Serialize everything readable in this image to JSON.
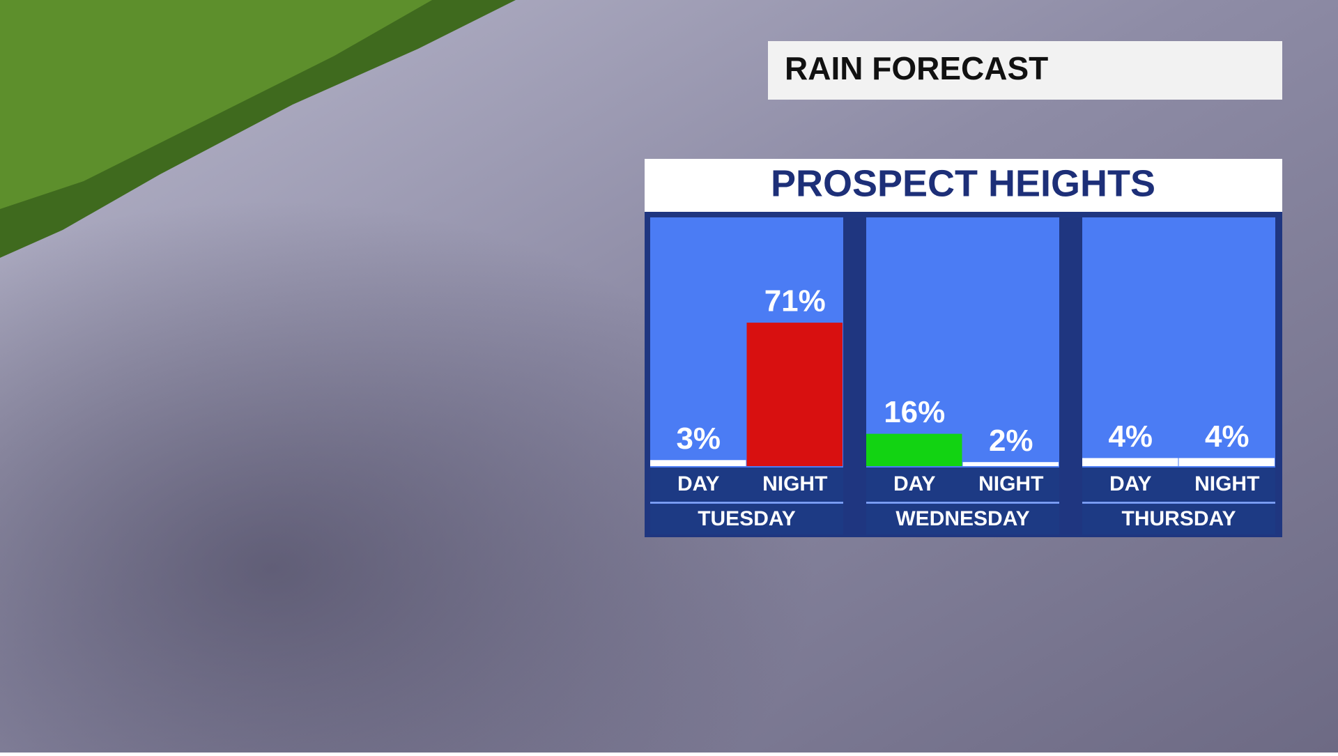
{
  "chart_data": {
    "type": "bar",
    "title": "RAIN FORECAST",
    "subtitle": "PROSPECT HEIGHTS",
    "categories": [
      "TUESDAY",
      "WEDNESDAY",
      "THURSDAY"
    ],
    "series": [
      {
        "name": "DAY",
        "values": [
          3,
          16,
          4
        ],
        "value_labels": [
          "3%",
          "16%",
          "4%"
        ],
        "colors": [
          "#ffffff",
          "#12d312",
          "#ffffff"
        ]
      },
      {
        "name": "NIGHT",
        "values": [
          71,
          2,
          4
        ],
        "value_labels": [
          "71%",
          "2%",
          "4%"
        ],
        "colors": [
          "#d81010",
          "#ffffff",
          "#ffffff"
        ]
      }
    ],
    "ylim": [
      0,
      100
    ]
  }
}
